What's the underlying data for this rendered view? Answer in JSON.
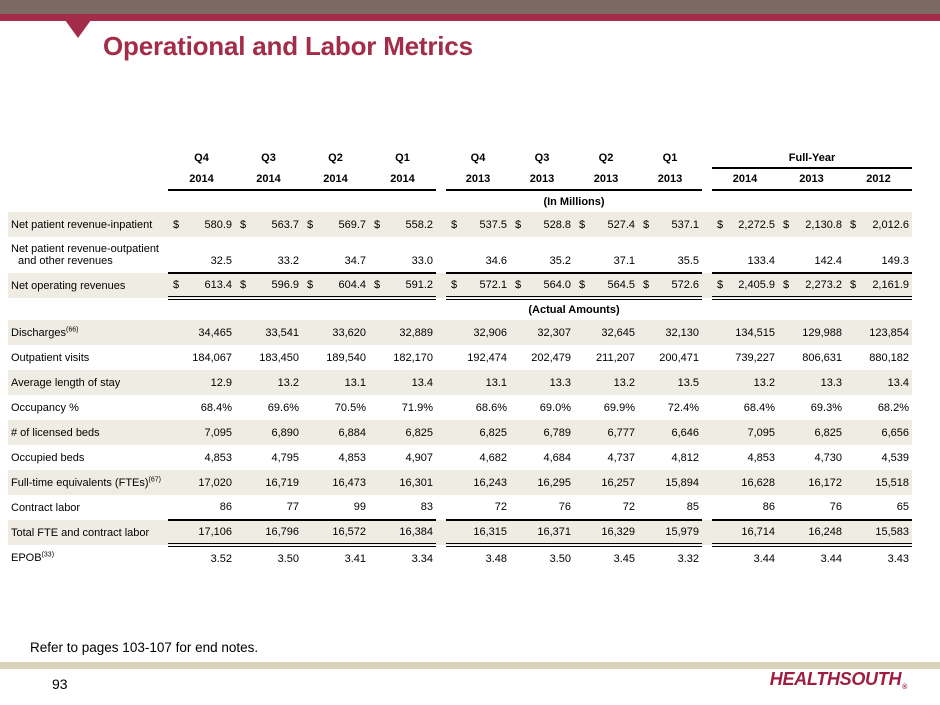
{
  "slide": {
    "title": "Operational and Labor Metrics",
    "footer_note": "Refer to pages 103-107 for end notes.",
    "page_number": "93",
    "logo_text": "HEALTHSOUTH",
    "logo_mark": "®"
  },
  "colors": {
    "maroon": "#A32C48",
    "logo_maroon": "#A01D42",
    "top_bar_gray": "#7B6A61",
    "row_shade": "#EFEDE3",
    "footer_bar": "#D8D4BA"
  },
  "table": {
    "header": {
      "groups": [
        {
          "quarters": [
            "Q4",
            "Q3",
            "Q2",
            "Q1"
          ],
          "years": [
            "2014",
            "2014",
            "2014",
            "2014"
          ]
        },
        {
          "quarters": [
            "Q4",
            "Q3",
            "Q2",
            "Q1"
          ],
          "years": [
            "2013",
            "2013",
            "2013",
            "2013"
          ]
        }
      ],
      "full_year": {
        "label": "Full-Year",
        "years": [
          "2014",
          "2013",
          "2012"
        ]
      }
    },
    "rows": [
      {
        "type": "band",
        "label": "(In Millions)"
      },
      {
        "type": "data",
        "label": "Net patient revenue-inpatient",
        "dollar": true,
        "shaded": true,
        "rule": "none",
        "values": [
          "580.9",
          "563.7",
          "569.7",
          "558.2",
          "537.5",
          "528.8",
          "527.4",
          "537.1",
          "2,272.5",
          "2,130.8",
          "2,012.6"
        ]
      },
      {
        "type": "data",
        "label": "Net patient revenue-outpatient",
        "label2": "and other revenues",
        "dollar": false,
        "shaded": false,
        "rule": "single",
        "values": [
          "32.5",
          "33.2",
          "34.7",
          "33.0",
          "34.6",
          "35.2",
          "37.1",
          "35.5",
          "133.4",
          "142.4",
          "149.3"
        ]
      },
      {
        "type": "data",
        "label": "Net operating revenues",
        "dollar": true,
        "shaded": true,
        "rule": "double",
        "values": [
          "613.4",
          "596.9",
          "604.4",
          "591.2",
          "572.1",
          "564.0",
          "564.5",
          "572.6",
          "2,405.9",
          "2,273.2",
          "2,161.9"
        ]
      },
      {
        "type": "band",
        "label": "(Actual Amounts)"
      },
      {
        "type": "data",
        "label": "Discharges",
        "sup": "(66)",
        "dollar": false,
        "shaded": true,
        "rule": "none",
        "values": [
          "34,465",
          "33,541",
          "33,620",
          "32,889",
          "32,906",
          "32,307",
          "32,645",
          "32,130",
          "134,515",
          "129,988",
          "123,854"
        ]
      },
      {
        "type": "data",
        "label": "Outpatient visits",
        "dollar": false,
        "shaded": false,
        "rule": "none",
        "values": [
          "184,067",
          "183,450",
          "189,540",
          "182,170",
          "192,474",
          "202,479",
          "211,207",
          "200,471",
          "739,227",
          "806,631",
          "880,182"
        ]
      },
      {
        "type": "data",
        "label": "Average length of stay",
        "dollar": false,
        "shaded": true,
        "rule": "none",
        "values": [
          "12.9",
          "13.2",
          "13.1",
          "13.4",
          "13.1",
          "13.3",
          "13.2",
          "13.5",
          "13.2",
          "13.3",
          "13.4"
        ]
      },
      {
        "type": "data",
        "label": "Occupancy %",
        "dollar": false,
        "shaded": false,
        "rule": "none",
        "values": [
          "68.4%",
          "69.6%",
          "70.5%",
          "71.9%",
          "68.6%",
          "69.0%",
          "69.9%",
          "72.4%",
          "68.4%",
          "69.3%",
          "68.2%"
        ]
      },
      {
        "type": "data",
        "label": "# of licensed beds",
        "dollar": false,
        "shaded": true,
        "rule": "none",
        "values": [
          "7,095",
          "6,890",
          "6,884",
          "6,825",
          "6,825",
          "6,789",
          "6,777",
          "6,646",
          "7,095",
          "6,825",
          "6,656"
        ]
      },
      {
        "type": "data",
        "label": "Occupied beds",
        "dollar": false,
        "shaded": false,
        "rule": "none",
        "values": [
          "4,853",
          "4,795",
          "4,853",
          "4,907",
          "4,682",
          "4,684",
          "4,737",
          "4,812",
          "4,853",
          "4,730",
          "4,539"
        ]
      },
      {
        "type": "data",
        "label": "Full-time equivalents (FTEs)",
        "sup": "(67)",
        "dollar": false,
        "shaded": true,
        "rule": "none",
        "values": [
          "17,020",
          "16,719",
          "16,473",
          "16,301",
          "16,243",
          "16,295",
          "16,257",
          "15,894",
          "16,628",
          "16,172",
          "15,518"
        ]
      },
      {
        "type": "data",
        "label": "Contract labor",
        "dollar": false,
        "shaded": false,
        "rule": "single",
        "values": [
          "86",
          "77",
          "99",
          "83",
          "72",
          "76",
          "72",
          "85",
          "86",
          "76",
          "65"
        ]
      },
      {
        "type": "data",
        "label": "Total FTE and contract labor",
        "dollar": false,
        "shaded": true,
        "rule": "double",
        "values": [
          "17,106",
          "16,796",
          "16,572",
          "16,384",
          "16,315",
          "16,371",
          "16,329",
          "15,979",
          "16,714",
          "16,248",
          "15,583"
        ]
      },
      {
        "type": "data",
        "label": "EPOB",
        "sup": "(33)",
        "dollar": false,
        "shaded": false,
        "rule": "none",
        "values": [
          "3.52",
          "3.50",
          "3.41",
          "3.34",
          "3.48",
          "3.50",
          "3.45",
          "3.32",
          "3.44",
          "3.44",
          "3.43"
        ]
      }
    ]
  }
}
